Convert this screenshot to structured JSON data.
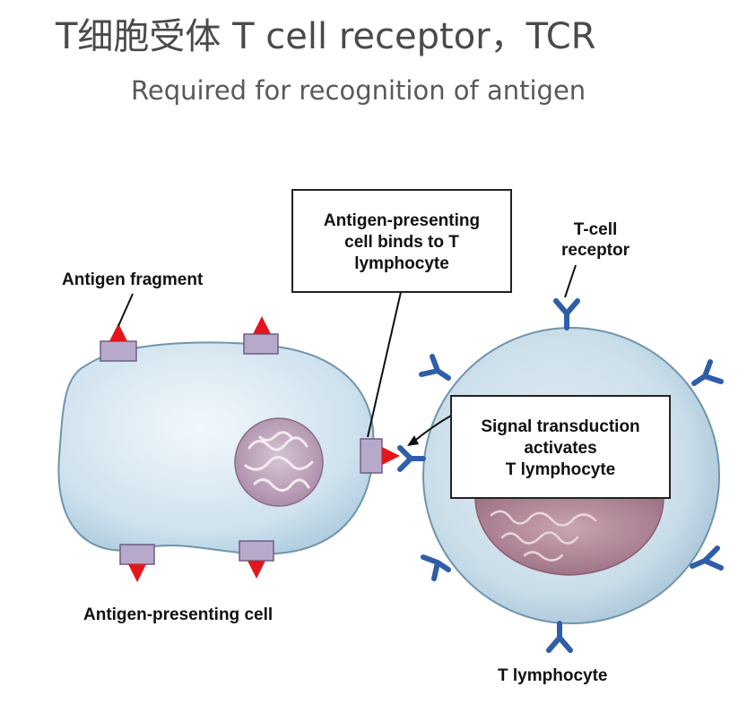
{
  "title": "T细胞受体 T cell receptor，TCR",
  "subtitle": "Required for recognition of antigen",
  "diagram": {
    "labels": {
      "antigen_fragment": "Antigen fragment",
      "apc": "Antigen-presenting cell",
      "t_lymphocyte": "T lymphocyte",
      "tcr_line1": "T-cell",
      "tcr_line2": "receptor"
    },
    "binding_box": [
      "Antigen-presenting",
      "cell binds to T",
      "lymphocyte"
    ],
    "signal_box": [
      "Signal transduction",
      "activates",
      "T lymphocyte"
    ]
  }
}
